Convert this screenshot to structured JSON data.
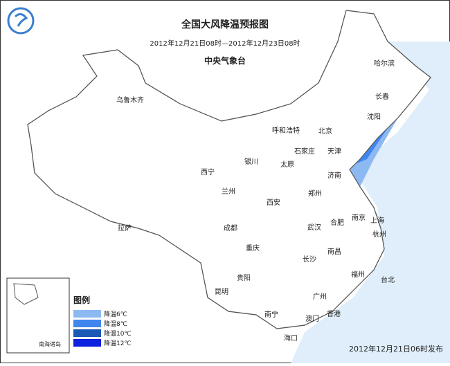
{
  "header": {
    "title": "全国大风降温预报图",
    "period": "2012年12月21日08时—2012年12月23日08时",
    "agency": "中央气象台"
  },
  "cities": [
    "乌鲁木齐",
    "呼和浩特",
    "哈尔滨",
    "长春",
    "沈阳",
    "北京",
    "天津",
    "石家庄",
    "太原",
    "银川",
    "西宁",
    "兰州",
    "济南",
    "郑州",
    "西安",
    "拉萨",
    "成都",
    "合肥",
    "南京",
    "上海",
    "武汉",
    "杭州",
    "重庆",
    "南昌",
    "长沙",
    "贵阳",
    "福州",
    "台北",
    "昆明",
    "广州",
    "南宁",
    "澳门",
    "香港",
    "海口"
  ],
  "legend": {
    "title": "图例",
    "items": [
      {
        "label": "降温6℃",
        "color": "#8db9f3"
      },
      {
        "label": "降温8℃",
        "color": "#3f86ee"
      },
      {
        "label": "降温10℃",
        "color": "#1c58b5"
      },
      {
        "label": "降温12℃",
        "color": "#0c22de"
      }
    ]
  },
  "inset": {
    "label": "南海诸岛"
  },
  "footer": {
    "issued": "2012年12月21日06时发布"
  }
}
